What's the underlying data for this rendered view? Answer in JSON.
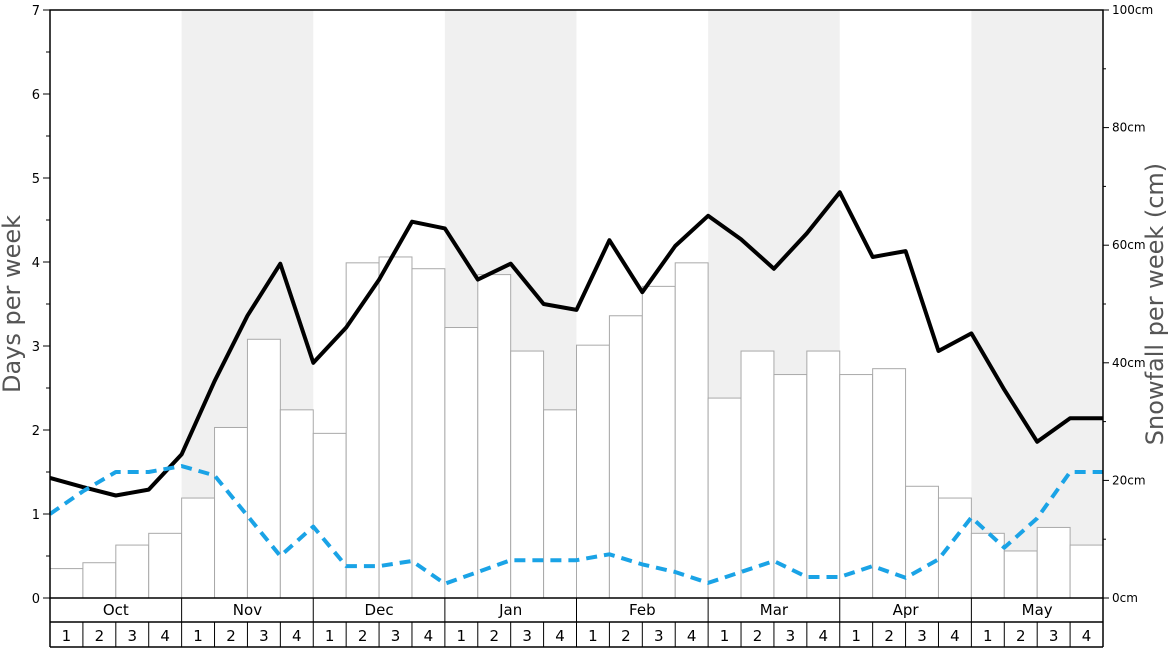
{
  "chart_data": {
    "type": "bar",
    "title": "",
    "ylabel": "Days per week",
    "y2label": "Snowfall per week (cm)",
    "ylim": [
      0,
      7
    ],
    "y2lim": [
      0,
      100
    ],
    "yticks": [
      "0",
      "1",
      "2",
      "3",
      "4",
      "5",
      "6",
      "7"
    ],
    "y2ticks": [
      "0cm",
      "20cm",
      "40cm",
      "60cm",
      "80cm",
      "100cm"
    ],
    "grid": false,
    "months": [
      "Oct",
      "Nov",
      "Dec",
      "Jan",
      "Feb",
      "Mar",
      "Apr",
      "May"
    ],
    "week_labels": [
      "1",
      "2",
      "3",
      "4"
    ],
    "series": [
      {
        "kind": "bar",
        "axis": "right",
        "color": "#ffffff",
        "values": [
          5,
          6,
          9,
          11,
          17,
          29,
          44,
          32,
          28,
          57,
          58,
          56,
          46,
          55,
          42,
          32,
          43,
          48,
          53,
          57,
          34,
          42,
          38,
          42,
          38,
          39,
          19,
          17,
          11,
          8,
          12,
          9
        ]
      },
      {
        "kind": "line",
        "axis": "left",
        "color": "#000000",
        "style": "solid",
        "values": [
          1.43,
          1.32,
          1.22,
          1.29,
          1.71,
          2.58,
          3.36,
          3.98,
          2.8,
          3.22,
          3.79,
          4.48,
          4.4,
          3.79,
          3.98,
          3.5,
          3.43,
          4.26,
          3.64,
          4.19,
          4.55,
          4.27,
          3.92,
          4.34,
          4.83,
          4.06,
          4.13,
          2.94,
          3.15,
          2.48,
          1.86,
          2.14,
          2.14
        ]
      },
      {
        "kind": "line",
        "axis": "left",
        "color": "#1aa3e6",
        "style": "dashed",
        "values": [
          1.0,
          1.27,
          1.5,
          1.5,
          1.57,
          1.46,
          0.98,
          0.5,
          0.85,
          0.38,
          0.38,
          0.44,
          0.17,
          0.31,
          0.45,
          0.45,
          0.45,
          0.52,
          0.4,
          0.31,
          0.18,
          0.31,
          0.44,
          0.25,
          0.25,
          0.38,
          0.24,
          0.46,
          0.96,
          0.6,
          0.95,
          1.5,
          1.5
        ]
      }
    ]
  }
}
